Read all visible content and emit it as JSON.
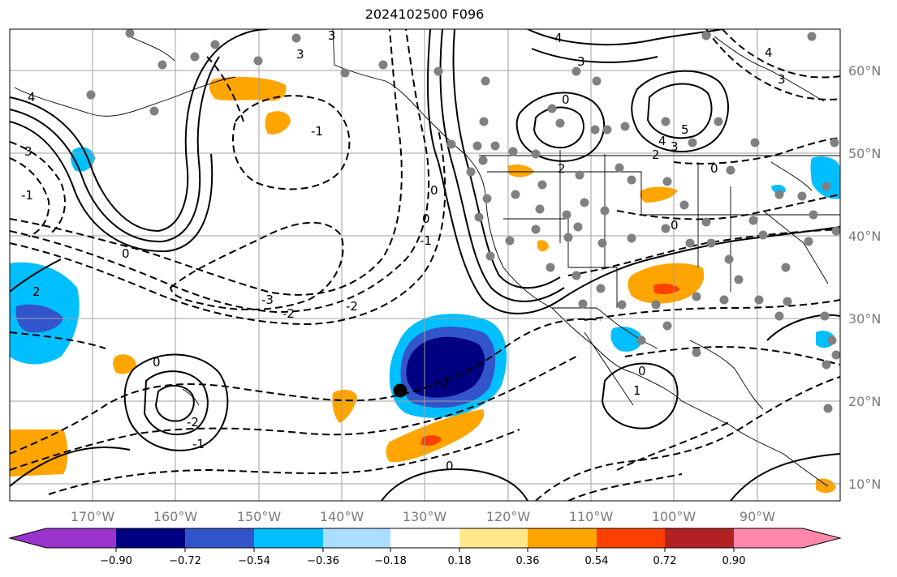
{
  "title": "2024102500 F096",
  "lat_labels": [
    "60°N",
    "50°N",
    "40°N",
    "30°N",
    "20°N",
    "10°N"
  ],
  "lon_labels": [
    "170°W",
    "160°W",
    "150°W",
    "140°W",
    "130°W",
    "120°W",
    "110°W",
    "100°W",
    "90°W"
  ],
  "colorbar": {
    "colors": [
      "#9933cc",
      "#000080",
      "#3355cc",
      "#00bfff",
      "#aaddff",
      "#ffffff",
      "#ffe88a",
      "#ffa500",
      "#ff4000",
      "#b22222",
      "#ff88aa"
    ],
    "tick_labels": [
      "−0.90",
      "−0.72",
      "−0.54",
      "−0.36",
      "−0.18",
      "0.18",
      "0.36",
      "0.54",
      "0.72",
      "0.90"
    ]
  },
  "contour_labels": [
    "4",
    "3",
    "4",
    "3",
    "3",
    "4",
    "3",
    "0",
    "2",
    "2",
    "3",
    "5",
    "4",
    "3",
    "0",
    "0",
    "-1",
    "0",
    "-3",
    "-2",
    "-2",
    "0",
    "-1",
    "-2",
    "-1",
    "0",
    "-1",
    "1",
    "0",
    "2",
    "2",
    "0",
    "0"
  ],
  "map_extent": {
    "lon_min": -180,
    "lon_max": -80,
    "lat_min": 8,
    "lat_max": 65
  }
}
